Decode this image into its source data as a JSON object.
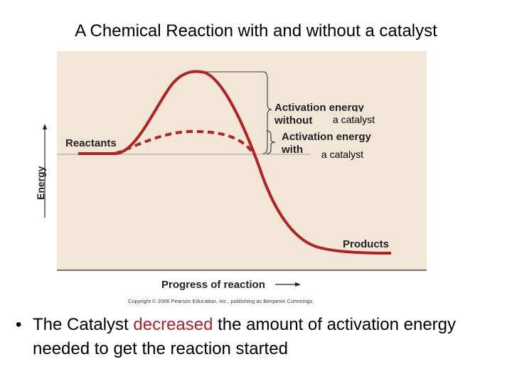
{
  "title": "A Chemical Reaction with and without a catalyst",
  "diagram": {
    "y_axis_label": "Energy",
    "x_axis_label": "Progress of reaction",
    "reactants_label": "Reactants",
    "products_label": "Products",
    "ea_without_line1": "Activation energy",
    "ea_without_line2": "without",
    "ea_without_patch": "a catalyst",
    "ea_with_line1": "Activation energy",
    "ea_with_line2": "with",
    "ea_with_patch": "a catalyst",
    "copyright": "Copyright © 2006 Pearson Education, Inc., publishing as Benjamin Cummings.",
    "colors": {
      "background": "#f2e6d6",
      "curve": "#b22222",
      "baseline": "#9a9a9a",
      "text": "#222222"
    }
  },
  "bullet": {
    "symbol": "•",
    "text_before": "The Catalyst ",
    "highlight": "decreased",
    "text_after": " the amount of activation energy needed to get the reaction started",
    "highlight_color": "#b0202a"
  }
}
